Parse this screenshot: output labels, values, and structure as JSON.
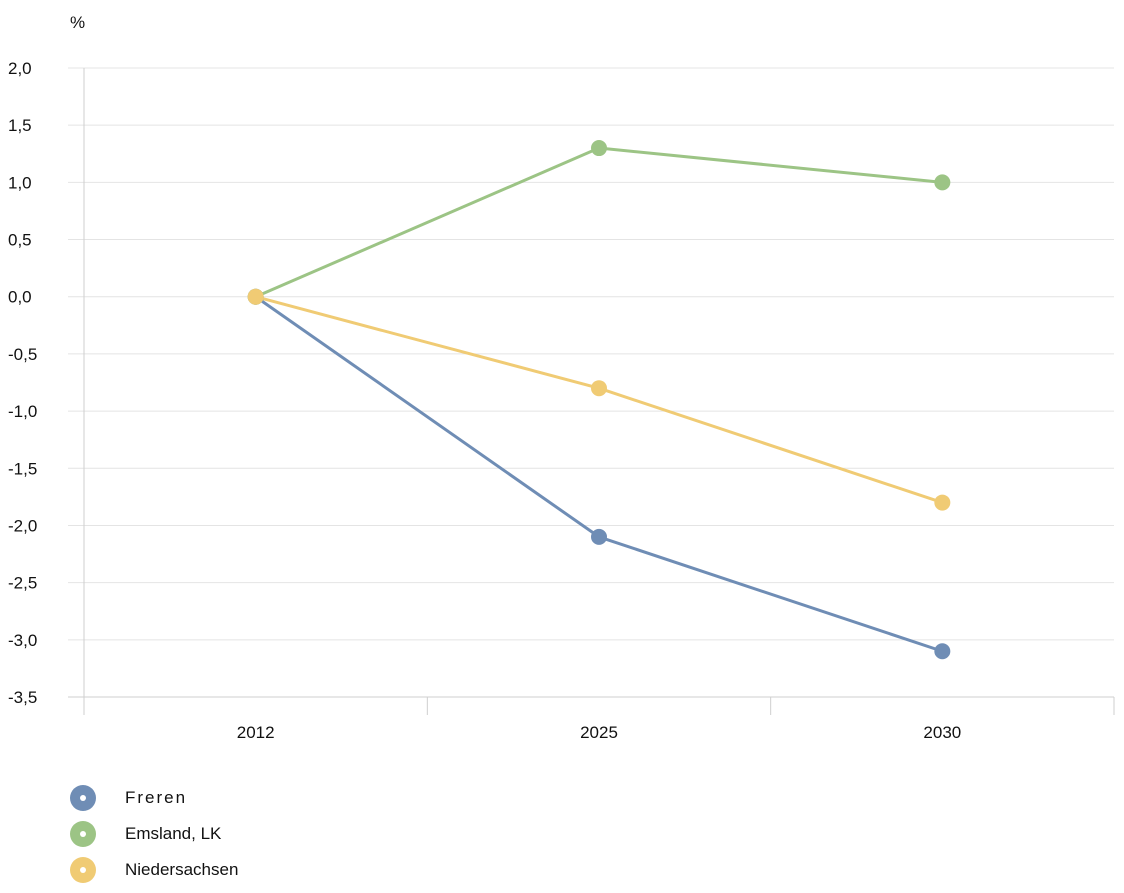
{
  "chart_data": {
    "type": "line",
    "ylabel": "%",
    "categories": [
      "2012",
      "2025",
      "2030"
    ],
    "ylim": [
      -3.5,
      2.0
    ],
    "yticks": [
      "2,0",
      "1,5",
      "1,0",
      "0,5",
      "0,0",
      "-0,5",
      "-1,0",
      "-1,5",
      "-2,0",
      "-2,5",
      "-3,0",
      "-3,5"
    ],
    "grid": true,
    "legend_position": "bottom-left",
    "series": [
      {
        "name": "Freren",
        "color": "#6f8db5",
        "values": [
          0.0,
          -2.1,
          -3.1
        ]
      },
      {
        "name": "Emsland, LK",
        "color": "#9cc485",
        "values": [
          0.0,
          1.3,
          1.0
        ]
      },
      {
        "name": "Niedersachsen",
        "color": "#f0cb74",
        "values": [
          0.0,
          -0.8,
          -1.8
        ]
      }
    ]
  }
}
